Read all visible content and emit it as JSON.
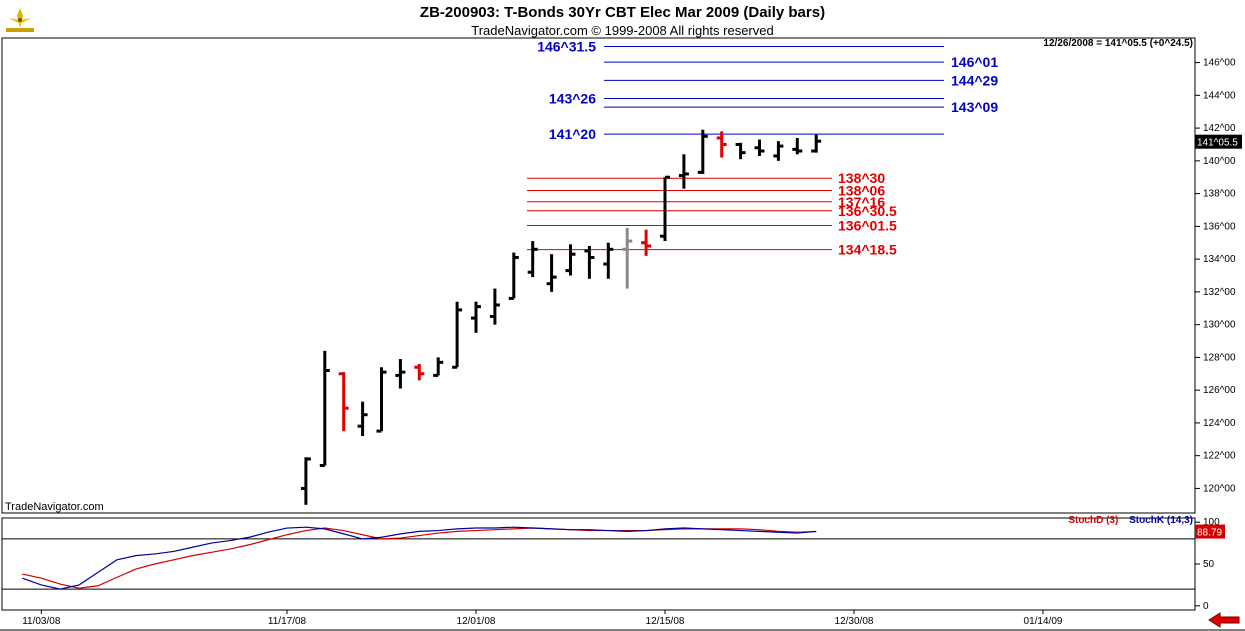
{
  "header": {
    "title": "ZB-200903:  T-Bonds 30Yr CBT Elec Mar 2009  (Daily bars)",
    "copyright": "TradeNavigator.com © 1999-2008 All rights reserved",
    "readout": "12/26/2008 = 141^05.5 (+0^24.5)",
    "watermark": "TradeNavigator.com",
    "logo_icon": "trade-navigator-logo-icon"
  },
  "indicator": {
    "stoch_d_label": "StochD (3)",
    "stoch_k_label": "StochK (14,3)"
  },
  "colors": {
    "up_bar": "#000000",
    "down_bar": "#e00000",
    "neutral_bar": "#8a8a8a",
    "blue_level": "#0000c8",
    "red_level": "#e00000",
    "stoch_d": "#d40000",
    "stoch_k": "#0000a0"
  },
  "chart_data": [
    {
      "type": "ohlc",
      "title": "ZB-200903:  T-Bonds 30Yr CBT Elec Mar 2009  (Daily bars)",
      "ylim": [
        118.5,
        147.5
      ],
      "y_ticks": [
        "120^00",
        "122^00",
        "124^00",
        "126^00",
        "128^00",
        "130^00",
        "132^00",
        "134^00",
        "136^00",
        "138^00",
        "140^00",
        "142^00",
        "144^00",
        "146^00"
      ],
      "y_tick_values": [
        120,
        122,
        124,
        126,
        128,
        130,
        132,
        134,
        136,
        138,
        140,
        142,
        144,
        146
      ],
      "last_price_label": "141^05.5",
      "last_price_value": 141.17,
      "x_tick_labels": [
        "11/03/08",
        "11/17/08",
        "12/01/08",
        "12/15/08",
        "12/30/08",
        "01/14/09"
      ],
      "x_tick_index": [
        1,
        14,
        24,
        34,
        44,
        54
      ],
      "bars": [
        {
          "i": 15,
          "o": 120.0,
          "h": 121.9,
          "l": 119.0,
          "c": 121.8,
          "color": "up"
        },
        {
          "i": 16,
          "o": 121.4,
          "h": 128.4,
          "l": 121.4,
          "c": 127.2,
          "color": "up"
        },
        {
          "i": 17,
          "o": 127.0,
          "h": 127.1,
          "l": 123.5,
          "c": 124.9,
          "color": "down"
        },
        {
          "i": 18,
          "o": 123.8,
          "h": 125.3,
          "l": 123.2,
          "c": 124.5,
          "color": "up"
        },
        {
          "i": 19,
          "o": 123.5,
          "h": 127.4,
          "l": 123.5,
          "c": 127.1,
          "color": "up"
        },
        {
          "i": 20,
          "o": 126.9,
          "h": 127.9,
          "l": 126.1,
          "c": 127.1,
          "color": "up"
        },
        {
          "i": 21,
          "o": 127.4,
          "h": 127.6,
          "l": 126.6,
          "c": 127.0,
          "color": "down"
        },
        {
          "i": 22,
          "o": 126.9,
          "h": 128.0,
          "l": 126.9,
          "c": 127.7,
          "color": "up"
        },
        {
          "i": 23,
          "o": 127.4,
          "h": 131.4,
          "l": 127.4,
          "c": 130.9,
          "color": "up"
        },
        {
          "i": 24,
          "o": 130.4,
          "h": 131.4,
          "l": 129.5,
          "c": 131.1,
          "color": "up"
        },
        {
          "i": 25,
          "o": 130.5,
          "h": 132.2,
          "l": 130.0,
          "c": 131.2,
          "color": "up"
        },
        {
          "i": 26,
          "o": 131.6,
          "h": 134.4,
          "l": 131.6,
          "c": 134.1,
          "color": "up"
        },
        {
          "i": 27,
          "o": 133.2,
          "h": 135.1,
          "l": 132.9,
          "c": 134.6,
          "color": "up"
        },
        {
          "i": 28,
          "o": 132.5,
          "h": 134.3,
          "l": 132.0,
          "c": 132.9,
          "color": "up"
        },
        {
          "i": 29,
          "o": 133.3,
          "h": 134.9,
          "l": 133.0,
          "c": 134.3,
          "color": "up"
        },
        {
          "i": 30,
          "o": 134.5,
          "h": 134.8,
          "l": 132.8,
          "c": 134.1,
          "color": "up"
        },
        {
          "i": 31,
          "o": 133.7,
          "h": 135.0,
          "l": 132.8,
          "c": 134.6,
          "color": "up"
        },
        {
          "i": 32,
          "o": 134.6,
          "h": 135.9,
          "l": 132.2,
          "c": 135.1,
          "color": "neutral"
        },
        {
          "i": 33,
          "o": 135.0,
          "h": 135.8,
          "l": 134.2,
          "c": 134.8,
          "color": "down"
        },
        {
          "i": 34,
          "o": 135.4,
          "h": 139.0,
          "l": 135.1,
          "c": 139.0,
          "color": "up"
        },
        {
          "i": 35,
          "o": 139.1,
          "h": 140.4,
          "l": 138.3,
          "c": 139.2,
          "color": "up"
        },
        {
          "i": 36,
          "o": 139.3,
          "h": 141.9,
          "l": 139.2,
          "c": 141.5,
          "color": "up"
        },
        {
          "i": 37,
          "o": 141.4,
          "h": 141.8,
          "l": 140.2,
          "c": 141.0,
          "color": "down"
        },
        {
          "i": 38,
          "o": 141.0,
          "h": 141.1,
          "l": 140.1,
          "c": 140.5,
          "color": "up"
        },
        {
          "i": 39,
          "o": 140.8,
          "h": 141.3,
          "l": 140.3,
          "c": 140.6,
          "color": "up"
        },
        {
          "i": 40,
          "o": 140.3,
          "h": 141.2,
          "l": 140.0,
          "c": 140.9,
          "color": "up"
        },
        {
          "i": 41,
          "o": 140.7,
          "h": 141.4,
          "l": 140.4,
          "c": 140.6,
          "color": "up"
        },
        {
          "i": 42,
          "o": 140.6,
          "h": 141.6,
          "l": 140.5,
          "c": 141.2,
          "color": "up"
        }
      ],
      "blue_levels": [
        {
          "label": "146^31.5",
          "value": 146.98,
          "label_side": "left"
        },
        {
          "label": "146^01",
          "value": 146.03,
          "label_side": "right"
        },
        {
          "label": "144^29",
          "value": 144.91,
          "label_side": "right"
        },
        {
          "label": "143^26",
          "value": 143.81,
          "label_side": "left"
        },
        {
          "label": "143^09",
          "value": 143.28,
          "label_side": "right"
        },
        {
          "label": "141^20",
          "value": 141.63,
          "label_side": "left"
        }
      ],
      "red_levels": [
        {
          "label": "138^30",
          "value": 138.94
        },
        {
          "label": "138^06",
          "value": 138.19
        },
        {
          "label": "137^16",
          "value": 137.5
        },
        {
          "label": "136^30.5",
          "value": 136.95
        },
        {
          "label": "136^01.5",
          "value": 136.05
        },
        {
          "label": "134^18.5",
          "value": 134.58
        }
      ]
    },
    {
      "type": "line",
      "title": "",
      "ylim": [
        -5,
        105
      ],
      "y_ticks": [
        "0",
        "50",
        "100"
      ],
      "y_tick_values": [
        0,
        50,
        100
      ],
      "reference_lines": [
        20,
        80
      ],
      "last_value_label": "88.79",
      "series": [
        {
          "name": "StochD (3)",
          "color": "#d40000",
          "x": [
            0,
            1,
            2,
            3,
            4,
            5,
            6,
            7,
            8,
            9,
            10,
            11,
            12,
            13,
            14,
            15,
            16,
            17,
            18,
            19,
            20,
            21,
            22,
            23,
            24,
            25,
            26,
            27,
            28,
            29,
            30,
            31,
            32,
            33,
            34,
            35,
            36,
            37,
            38,
            39,
            40,
            41,
            42
          ],
          "values": [
            38,
            33,
            26,
            21,
            24,
            34,
            44,
            50,
            55,
            60,
            64,
            68,
            73,
            79,
            85,
            90,
            93,
            90,
            85,
            80,
            81,
            84,
            87,
            89,
            90,
            91,
            92,
            93,
            92,
            91,
            90,
            90,
            90,
            90,
            91,
            92,
            92,
            92,
            92,
            91,
            89,
            88,
            88.79
          ]
        },
        {
          "name": "StochK (14,3)",
          "color": "#0000a0",
          "x": [
            0,
            1,
            2,
            3,
            4,
            5,
            6,
            7,
            8,
            9,
            10,
            11,
            12,
            13,
            14,
            15,
            16,
            17,
            18,
            19,
            20,
            21,
            22,
            23,
            24,
            25,
            26,
            27,
            28,
            29,
            30,
            31,
            32,
            33,
            34,
            35,
            36,
            37,
            38,
            39,
            40,
            41,
            42
          ],
          "values": [
            33,
            25,
            20,
            25,
            40,
            55,
            60,
            62,
            65,
            70,
            75,
            78,
            82,
            88,
            93,
            94,
            92,
            86,
            80,
            82,
            86,
            89,
            90,
            92,
            93,
            93,
            94,
            93,
            92,
            91,
            91,
            90,
            89,
            90,
            92,
            93,
            92,
            91,
            90,
            89,
            88,
            87,
            89
          ]
        }
      ]
    }
  ]
}
